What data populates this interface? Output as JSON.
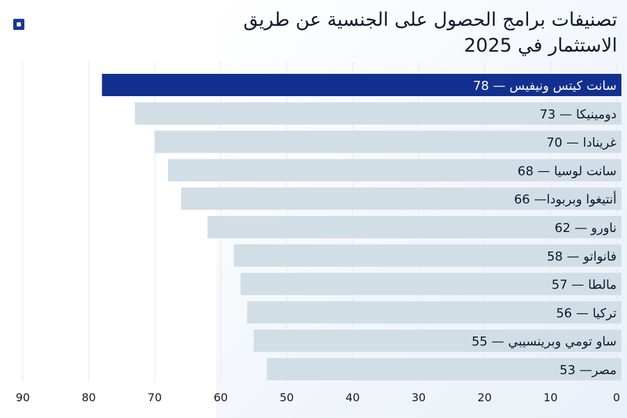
{
  "chart_data": {
    "type": "bar",
    "orientation": "horizontal",
    "title": "تصنيفات برامج الحصول على الجنسية عن طريق الاستثمار في 2025",
    "categories": [
      "سانت كيتس ونيفيس",
      "دومينيكا",
      "غرينادا",
      "سانت لوسيا",
      "أنتيغوا وبربودا",
      "ناورو",
      "فانواتو",
      "مالطا",
      "تركيا",
      "ساو تومي وبرينسيبي",
      "مصر"
    ],
    "values": [
      78,
      73,
      70,
      68,
      66,
      62,
      58,
      57,
      56,
      55,
      53
    ],
    "labels": [
      "سانت كيتس ونيفيس  — 78",
      "دومينيكا — 73",
      "غرينادا — 70",
      "سانت لوسيا — 68",
      "أنتيغوا وبربودا— 66",
      "ناورو — 62",
      "فانواتو — 58",
      "مالطا — 57",
      "تركيا — 56",
      "ساو تومي وبرينسيبي — 55",
      "مصر— 53"
    ],
    "highlight_index": 0,
    "x_axis": {
      "ticks": [
        0,
        10,
        20,
        30,
        40,
        50,
        60,
        70,
        80,
        90
      ],
      "range": [
        0,
        90
      ],
      "reversed": true
    },
    "grid": true,
    "colors": {
      "highlight": "#12308f",
      "bar": "#d1dee6",
      "grid": "#e2e8ee"
    }
  }
}
